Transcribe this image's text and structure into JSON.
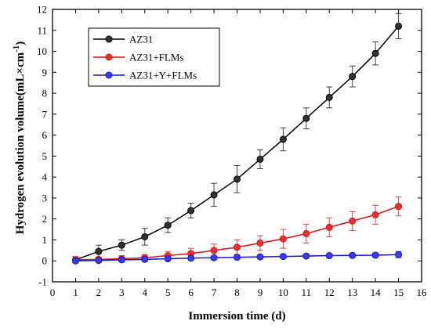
{
  "chart_data": {
    "type": "line",
    "xlabel": "Immersion time (d)",
    "ylabel": "Hydrogen evolution volume(mL×cm",
    "ylabel_superscript": "-1",
    "ylabel_close": ")",
    "xlim": [
      0,
      16
    ],
    "ylim": [
      -1,
      12
    ],
    "xticks": [
      "0",
      "1",
      "2",
      "3",
      "4",
      "5",
      "6",
      "7",
      "8",
      "9",
      "10",
      "11",
      "12",
      "13",
      "14",
      "15",
      "16"
    ],
    "yticks": [
      "-1",
      "0",
      "1",
      "2",
      "3",
      "4",
      "5",
      "6",
      "7",
      "8",
      "9",
      "10",
      "11",
      "12"
    ],
    "legend_position": "top-left",
    "grid": false,
    "x": [
      1,
      2,
      3,
      4,
      5,
      6,
      7,
      8,
      9,
      10,
      11,
      12,
      13,
      14,
      15
    ],
    "series": [
      {
        "name": "AZ31",
        "color": "#000000",
        "marker_fill": "#333333",
        "values": [
          0.05,
          0.45,
          0.75,
          1.15,
          1.7,
          2.4,
          3.15,
          3.9,
          4.85,
          5.8,
          6.8,
          7.8,
          8.8,
          9.9,
          11.2
        ],
        "errors": [
          0.15,
          0.3,
          0.25,
          0.4,
          0.35,
          0.35,
          0.55,
          0.65,
          0.45,
          0.55,
          0.5,
          0.5,
          0.5,
          0.55,
          0.6
        ]
      },
      {
        "name": "AZ31+FLMs",
        "color": "#e01010",
        "marker_fill": "#e83030",
        "values": [
          0.05,
          0.07,
          0.1,
          0.15,
          0.25,
          0.35,
          0.5,
          0.65,
          0.85,
          1.05,
          1.3,
          1.6,
          1.9,
          2.2,
          2.6
        ],
        "errors": [
          0.15,
          0.1,
          0.15,
          0.15,
          0.2,
          0.25,
          0.3,
          0.35,
          0.35,
          0.45,
          0.45,
          0.45,
          0.45,
          0.45,
          0.45
        ]
      },
      {
        "name": "AZ31+Y+FLMs",
        "color": "#1515d0",
        "marker_fill": "#3a3af0",
        "values": [
          0.0,
          0.02,
          0.05,
          0.07,
          0.1,
          0.13,
          0.15,
          0.17,
          0.19,
          0.21,
          0.23,
          0.25,
          0.26,
          0.27,
          0.3
        ],
        "errors": [
          0.05,
          0.05,
          0.05,
          0.05,
          0.05,
          0.05,
          0.05,
          0.05,
          0.05,
          0.07,
          0.07,
          0.07,
          0.07,
          0.1,
          0.15
        ]
      }
    ]
  }
}
